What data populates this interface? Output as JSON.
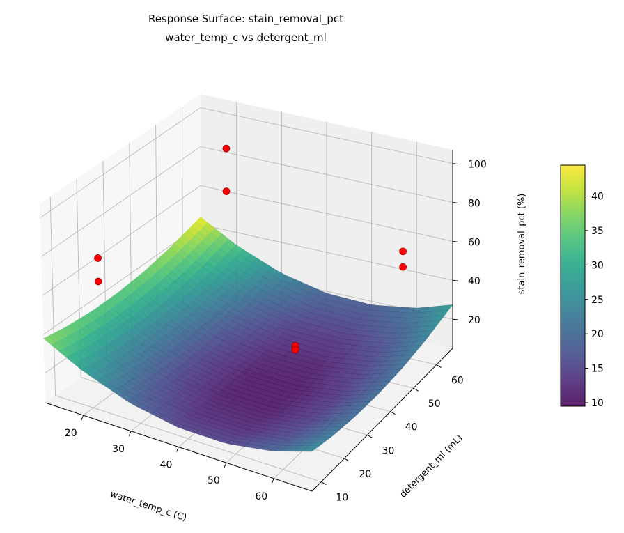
{
  "chart_data": {
    "type": "surface3d",
    "title": "Response Surface: stain_removal_pct",
    "subtitle": "water_temp_c vs detergent_ml",
    "xlabel": "water_temp_c (C)",
    "ylabel": "detergent_ml (mL)",
    "zlabel": "stain_removal_pct (%)",
    "xlim": [
      12,
      68
    ],
    "ylim": [
      6,
      67
    ],
    "zlim": [
      5,
      107
    ],
    "xticks": [
      20,
      30,
      40,
      50,
      60
    ],
    "yticks": [
      10,
      20,
      30,
      40,
      50,
      60
    ],
    "zticks": [
      20,
      40,
      60,
      80,
      100
    ],
    "grid": true,
    "colormap": "viridis",
    "surface": {
      "x": [
        12,
        20,
        30,
        40,
        50,
        60,
        68
      ],
      "y": [
        6,
        15,
        25,
        35,
        45,
        55,
        67
      ],
      "z": [
        [
          38.0,
          35.8,
          34.6,
          34.8,
          36.2,
          39.0,
          43.9
        ],
        [
          28.0,
          25.8,
          24.5,
          24.6,
          25.9,
          28.5,
          33.4
        ],
        [
          19.3,
          17.0,
          15.6,
          15.6,
          16.8,
          19.3,
          24.1
        ],
        [
          15.0,
          12.5,
          11.0,
          10.9,
          12.0,
          14.4,
          19.0
        ],
        [
          14.9,
          12.3,
          10.7,
          10.4,
          11.4,
          13.7,
          18.1
        ],
        [
          19.0,
          16.3,
          14.6,
          14.2,
          15.1,
          17.2,
          21.6
        ],
        [
          25.4,
          22.6,
          20.8,
          20.3,
          21.1,
          23.2,
          27.4
        ]
      ]
    },
    "points": [
      {
        "x": 20,
        "y": 63,
        "z": 87
      },
      {
        "x": 20,
        "y": 63,
        "z": 65
      },
      {
        "x": 20,
        "y": 13,
        "z": 79
      },
      {
        "x": 20,
        "y": 13,
        "z": 67
      },
      {
        "x": 58,
        "y": 65,
        "z": 52
      },
      {
        "x": 58,
        "y": 65,
        "z": 44
      },
      {
        "x": 48,
        "y": 39,
        "z": 27
      },
      {
        "x": 48,
        "y": 39,
        "z": 25
      }
    ],
    "point_color": "#ff0000",
    "colorbar": {
      "label": "stain_removal_pct (%)",
      "range": [
        9.5,
        44.5
      ],
      "ticks": [
        10,
        15,
        20,
        25,
        30,
        35,
        40
      ]
    }
  }
}
